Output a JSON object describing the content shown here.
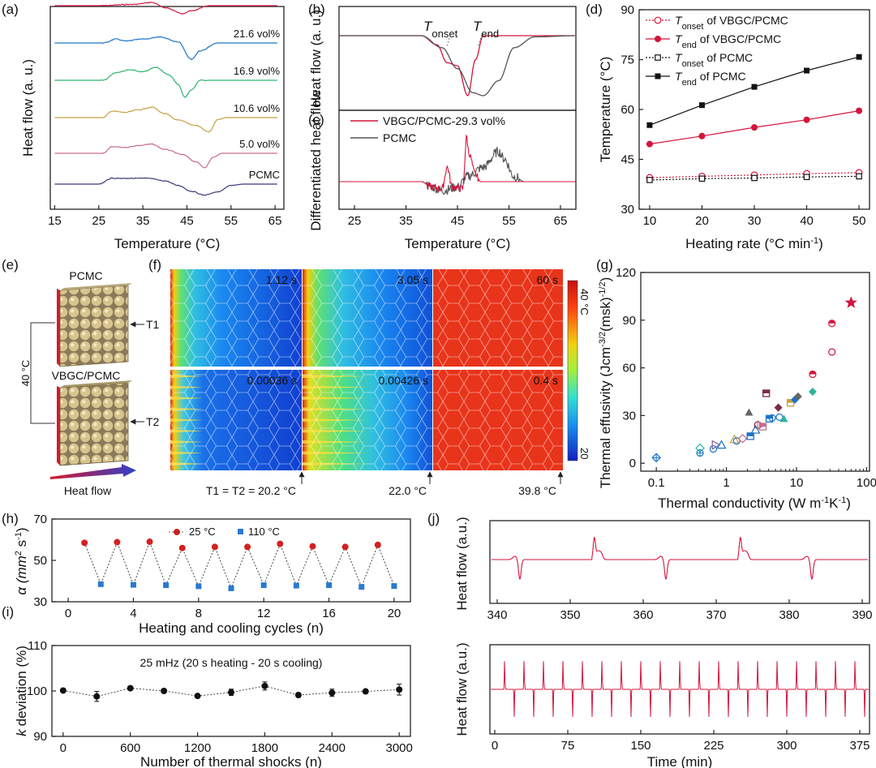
{
  "panels": {
    "a": "(a)",
    "b": "(b)",
    "c": "(c)",
    "d": "(d)",
    "e": "(e)",
    "f": "(f)",
    "g": "(g)",
    "h": "(h)",
    "i": "(i)",
    "j": "(j)"
  },
  "colors": {
    "red": "#d4143c",
    "blue": "#1a73c8",
    "green": "#2db36b",
    "gold": "#c8a040",
    "pink": "#c76c8a",
    "navy": "#3a3a7a",
    "gray": "#555555",
    "black": "#111111",
    "dot_red": "#d42020",
    "sq_blue": "#2a7ad0"
  },
  "chart_data": [
    {
      "id": "a",
      "type": "line",
      "ylabel": "Heat flow (a. u.)",
      "xlabel": "Temperature (°C)",
      "xlim": [
        14,
        67
      ],
      "xticks": [
        15,
        25,
        35,
        45,
        55,
        65
      ],
      "series": [
        {
          "name": "29.3 vol%",
          "label": "29.3 vol%",
          "color": "#d4143c",
          "shape": [
            [
              15,
              0
            ],
            [
              25,
              0
            ],
            [
              33,
              -0.2
            ],
            [
              37,
              -0.5
            ],
            [
              40,
              0.3
            ],
            [
              44,
              1.2
            ],
            [
              46,
              0.8
            ],
            [
              50,
              0
            ],
            [
              65,
              0
            ]
          ]
        },
        {
          "name": "21.6 vol%",
          "label": "21.6 vol%",
          "color": "#1a73c8",
          "shape": [
            [
              15,
              0
            ],
            [
              26,
              0
            ],
            [
              29,
              -0.6
            ],
            [
              31,
              -0.3
            ],
            [
              35,
              -0.6
            ],
            [
              39,
              -0.9
            ],
            [
              43,
              -0.2
            ],
            [
              46,
              2.5
            ],
            [
              48,
              1.2
            ],
            [
              52,
              0
            ],
            [
              65,
              0
            ]
          ]
        },
        {
          "name": "16.9 vol%",
          "label": "16.9 vol%",
          "color": "#2db36b",
          "shape": [
            [
              15,
              0
            ],
            [
              26,
              0
            ],
            [
              29,
              -1.2
            ],
            [
              32,
              -1.6
            ],
            [
              35,
              -1.3
            ],
            [
              38,
              -2.0
            ],
            [
              41,
              -0.8
            ],
            [
              43,
              0.6
            ],
            [
              44.5,
              2.6
            ],
            [
              46,
              1.5
            ],
            [
              48,
              0
            ],
            [
              65,
              0
            ]
          ]
        },
        {
          "name": "10.6 vol%",
          "label": "10.6 vol%",
          "color": "#c8a040",
          "shape": [
            [
              15,
              0
            ],
            [
              26,
              0
            ],
            [
              28,
              -1.0
            ],
            [
              31,
              -0.8
            ],
            [
              34,
              -1.2
            ],
            [
              37,
              -1.6
            ],
            [
              40,
              -0.6
            ],
            [
              43,
              0.4
            ],
            [
              47,
              1.2
            ],
            [
              50,
              2.2
            ],
            [
              52,
              0.3
            ],
            [
              54,
              0
            ],
            [
              65,
              0
            ]
          ]
        },
        {
          "name": "5.0 vol%",
          "label": "5.0 vol%",
          "color": "#c76c8a",
          "shape": [
            [
              15,
              0
            ],
            [
              26,
              0
            ],
            [
              28,
              -1.0
            ],
            [
              31,
              -0.9
            ],
            [
              34,
              -1.2
            ],
            [
              37,
              -1.4
            ],
            [
              40,
              -0.6
            ],
            [
              44,
              0.2
            ],
            [
              47,
              1.3
            ],
            [
              49,
              2.2
            ],
            [
              51,
              0.6
            ],
            [
              53,
              0
            ],
            [
              65,
              0
            ]
          ]
        },
        {
          "name": "PCMC",
          "label": "PCMC",
          "color": "#3a3a7a",
          "shape": [
            [
              15,
              0
            ],
            [
              25,
              0
            ],
            [
              28,
              -0.9
            ],
            [
              32,
              -0.9
            ],
            [
              36,
              -0.9
            ],
            [
              40,
              -0.5
            ],
            [
              43,
              0.2
            ],
            [
              46,
              1.1
            ],
            [
              49,
              1.7
            ],
            [
              52,
              1.2
            ],
            [
              55,
              0.2
            ],
            [
              58,
              0
            ],
            [
              65,
              0
            ]
          ]
        }
      ]
    },
    {
      "id": "b",
      "type": "line",
      "ylabel": "Heat flow (a. u.)",
      "annotations": [
        "T",
        "onset",
        "T",
        "end"
      ],
      "series": [
        {
          "name": "VBGC/PCMC-29.3 vol%",
          "color": "#d4143c",
          "shape": [
            [
              22,
              0
            ],
            [
              38,
              0
            ],
            [
              41,
              0.15
            ],
            [
              43,
              0.45
            ],
            [
              45,
              0.5
            ],
            [
              47,
              1.0
            ],
            [
              48.5,
              0.4
            ],
            [
              50,
              0
            ],
            [
              68,
              0
            ]
          ]
        },
        {
          "name": "PCMC",
          "color": "#555555",
          "shape": [
            [
              22,
              0
            ],
            [
              38,
              0
            ],
            [
              42,
              0.2
            ],
            [
              45,
              0.55
            ],
            [
              48,
              0.95
            ],
            [
              50,
              1.0
            ],
            [
              53,
              0.75
            ],
            [
              56,
              0.2
            ],
            [
              60,
              0.02
            ],
            [
              68,
              0
            ]
          ]
        }
      ]
    },
    {
      "id": "c",
      "type": "line",
      "ylabel": "Differentiated heat flow",
      "xlabel": "Temperature (°C)",
      "xlim": [
        22,
        68
      ],
      "xticks": [
        25,
        35,
        45,
        55,
        65
      ],
      "series": [
        {
          "name": "VBGC/PCMC-29.3 vol%",
          "label": "VBGC/PCMC-29.3 vol%",
          "color": "#d4143c",
          "shape": [
            [
              22,
              0
            ],
            [
              38,
              0
            ],
            [
              40,
              -0.3
            ],
            [
              42,
              -0.4
            ],
            [
              43,
              0.8
            ],
            [
              44,
              -0.3
            ],
            [
              46,
              -0.4
            ],
            [
              46.8,
              2.5
            ],
            [
              47.2,
              1.6
            ],
            [
              48.5,
              0.4
            ],
            [
              49.5,
              0
            ],
            [
              68,
              0
            ]
          ]
        },
        {
          "name": "PCMC",
          "label": "PCMC",
          "color": "#555555",
          "shape": [
            [
              22,
              0
            ],
            [
              38,
              0
            ],
            [
              40,
              -0.3
            ],
            [
              42,
              -0.5
            ],
            [
              45,
              -0.3
            ],
            [
              47,
              0.3
            ],
            [
              50,
              0.8
            ],
            [
              53,
              1.7
            ],
            [
              54,
              1.3
            ],
            [
              56,
              0.3
            ],
            [
              58,
              0
            ],
            [
              68,
              0
            ]
          ]
        }
      ]
    },
    {
      "id": "d",
      "type": "line",
      "xlabel": "Heating rate (°C min",
      "xlabel_sup": "-1",
      "xlabel_end": ")",
      "ylabel": "Temperature (°C)",
      "xlim": [
        8,
        52
      ],
      "ylim": [
        30,
        90
      ],
      "xticks": [
        10,
        20,
        30,
        40,
        50
      ],
      "yticks": [
        30,
        45,
        60,
        75,
        90
      ],
      "x": [
        10,
        20,
        30,
        40,
        50
      ],
      "series": [
        {
          "name": "Tonset of VBGC/PCMC",
          "t": "T",
          "sub": "onset",
          "rest": " of VBGC/PCMC",
          "color": "#d4143c",
          "marker": "open-circle",
          "dash": true,
          "values": [
            39.5,
            39.9,
            40.3,
            40.7,
            41.0
          ]
        },
        {
          "name": "Tend of VBGC/PCMC",
          "t": "T",
          "sub": "end",
          "rest": " of VBGC/PCMC",
          "color": "#d4143c",
          "marker": "circle",
          "dash": false,
          "values": [
            49.6,
            52.0,
            54.6,
            56.9,
            59.6
          ]
        },
        {
          "name": "Tonset of PCMC",
          "t": "T",
          "sub": "onset",
          "rest": " of PCMC",
          "color": "#111111",
          "marker": "open-square",
          "dash": true,
          "values": [
            38.8,
            39.2,
            39.4,
            39.7,
            39.9
          ]
        },
        {
          "name": "Tend of PCMC",
          "t": "T",
          "sub": "end",
          "rest": " of PCMC",
          "color": "#111111",
          "marker": "square",
          "dash": false,
          "values": [
            55.3,
            61.3,
            66.8,
            71.7,
            75.8
          ]
        }
      ]
    },
    {
      "id": "g",
      "type": "scatter",
      "xlabel": "Thermal conductivity (W m",
      "xlabel_sup1": "-1",
      "xlabel_mid": "K",
      "xlabel_sup2": "-1",
      "xlabel_end": ")",
      "ylabel": "Thermal effusivity (Jcm",
      "ylabel_sup1": "-3/2",
      "ylabel_mid": "(msk)",
      "ylabel_sup2": "-1/2",
      "ylabel_end": ")",
      "xscale": "log",
      "xlim": [
        0.06,
        110
      ],
      "ylim": [
        -5,
        120
      ],
      "xticks": [
        0.1,
        1,
        10,
        100
      ],
      "xtick_labels": [
        "0.1",
        "1",
        "10",
        "100"
      ],
      "yticks": [
        0,
        30,
        60,
        90,
        120
      ],
      "points": [
        {
          "x": 0.1,
          "y": 3.5,
          "m": "diamond-cross",
          "c": "#1a73c8"
        },
        {
          "x": 0.42,
          "y": 6.5,
          "m": "circle-cross",
          "c": "#1a73c8"
        },
        {
          "x": 0.42,
          "y": 9.5,
          "m": "diamond",
          "c": "#2db3a0"
        },
        {
          "x": 0.65,
          "y": 9,
          "m": "circle",
          "c": "#1a73c8"
        },
        {
          "x": 0.7,
          "y": 11.5,
          "m": "triangle-r",
          "c": "#7a5aa0"
        },
        {
          "x": 0.85,
          "y": 11.5,
          "m": "triangle",
          "c": "#1a73c8"
        },
        {
          "x": 1.3,
          "y": 15,
          "m": "triangle",
          "c": "#c8a040"
        },
        {
          "x": 1.4,
          "y": 14,
          "m": "circle",
          "c": "#1a73c8"
        },
        {
          "x": 1.7,
          "y": 15.5,
          "m": "diamond",
          "c": "#c76c8a"
        },
        {
          "x": 2.1,
          "y": 32,
          "m": "triangle-f",
          "c": "#666666"
        },
        {
          "x": 2.2,
          "y": 17,
          "m": "square",
          "c": "#1a73c8"
        },
        {
          "x": 2.6,
          "y": 21,
          "m": "triangle",
          "c": "#1a73c8"
        },
        {
          "x": 2.8,
          "y": 24,
          "m": "circle",
          "c": "#7a2a4a"
        },
        {
          "x": 3.1,
          "y": 24,
          "m": "triangle-r",
          "c": "#c76c8a"
        },
        {
          "x": 3.3,
          "y": 23,
          "m": "square",
          "c": "#c76c8a"
        },
        {
          "x": 3.7,
          "y": 44,
          "m": "square",
          "c": "#7a2a4a"
        },
        {
          "x": 4.1,
          "y": 28,
          "m": "square",
          "c": "#1a73c8"
        },
        {
          "x": 4.5,
          "y": 28.5,
          "m": "circle",
          "c": "#1a73c8"
        },
        {
          "x": 5.5,
          "y": 35,
          "m": "diamond-f",
          "c": "#7a2a4a"
        },
        {
          "x": 5.7,
          "y": 29,
          "m": "circle",
          "c": "#1a73c8"
        },
        {
          "x": 6.6,
          "y": 28,
          "m": "triangle-f",
          "c": "#2db3a0"
        },
        {
          "x": 8.2,
          "y": 38,
          "m": "square",
          "c": "#c8a040"
        },
        {
          "x": 9.5,
          "y": 40,
          "m": "diamond-f",
          "c": "#1a73c8"
        },
        {
          "x": 10.5,
          "y": 42,
          "m": "diamond-f",
          "c": "#666666"
        },
        {
          "x": 17,
          "y": 45,
          "m": "diamond-f",
          "c": "#2db3a0"
        },
        {
          "x": 17,
          "y": 56,
          "m": "circle-half",
          "c": "#d4143c"
        },
        {
          "x": 32,
          "y": 70,
          "m": "circle",
          "c": "#d4143c"
        },
        {
          "x": 32,
          "y": 88,
          "m": "circle-half",
          "c": "#d4143c"
        },
        {
          "x": 60,
          "y": 101,
          "m": "star",
          "c": "#d4143c"
        }
      ]
    },
    {
      "id": "h",
      "type": "scatter",
      "ylabel": "α (mm",
      "ylabel_sup": "2",
      "ylabel_mid": " s",
      "ylabel_sup2": "-1",
      "ylabel_end": ")",
      "xlabel": "Heating and cooling cycles (n)",
      "xlim": [
        -1,
        21
      ],
      "ylim": [
        30,
        70
      ],
      "xticks": [
        0,
        4,
        8,
        12,
        16,
        20
      ],
      "yticks": [
        30,
        50,
        70
      ],
      "legend": [
        "25 °C",
        "110 °C"
      ],
      "x": [
        1,
        2,
        3,
        4,
        5,
        6,
        7,
        8,
        9,
        10,
        11,
        12,
        13,
        14,
        15,
        16,
        17,
        18,
        19,
        20
      ],
      "values": [
        58.5,
        38.5,
        58.8,
        38.2,
        59,
        38,
        56,
        37.5,
        56.5,
        36.5,
        56.5,
        38,
        58,
        37.8,
        56.8,
        38,
        56.5,
        37.2,
        57.5,
        37.6
      ]
    },
    {
      "id": "i",
      "type": "scatter",
      "ylabel": "deviation (%)",
      "ylabel_k": "k",
      "xlabel": "Number of thermal shocks (n)",
      "annotation": "25 mHz (20 s heating - 20 s cooling)",
      "xlim": [
        -100,
        3100
      ],
      "ylim": [
        90,
        110
      ],
      "xticks": [
        0,
        600,
        1200,
        1800,
        2400,
        3000
      ],
      "yticks": [
        90,
        100,
        110
      ],
      "x": [
        0,
        300,
        600,
        900,
        1200,
        1500,
        1800,
        2100,
        2400,
        2700,
        3000
      ],
      "values": [
        100.1,
        98.8,
        100.6,
        100.0,
        98.9,
        99.7,
        101.1,
        99.1,
        99.6,
        99.9,
        100.3
      ],
      "errors": [
        0.3,
        1.1,
        0.3,
        0.3,
        0.2,
        0.7,
        0.9,
        0.5,
        0.8,
        0.4,
        1.2
      ]
    },
    {
      "id": "j_top",
      "type": "line",
      "ylabel": "Heat flow (a.u.)",
      "xlim": [
        339,
        391
      ],
      "xticks": [
        340,
        350,
        360,
        370,
        380,
        390
      ],
      "color": "#d4143c",
      "peaks": [
        {
          "x": 343,
          "dir": -1
        },
        {
          "x": 353.3,
          "dir": 1
        },
        {
          "x": 363,
          "dir": -1
        },
        {
          "x": 373.3,
          "dir": 1
        },
        {
          "x": 383,
          "dir": -1
        }
      ]
    },
    {
      "id": "j_bottom",
      "type": "line",
      "ylabel": "Heat flow (a.u.)",
      "xlabel": "Time (min)",
      "xlim": [
        -5,
        385
      ],
      "xticks": [
        0,
        75,
        150,
        225,
        300,
        375
      ],
      "color": "#d4143c",
      "period_min": 20,
      "cycles": 19
    }
  ],
  "panel_e": {
    "top_label": "PCMC",
    "bottom_label": "VBGC/PCMC",
    "t1": "T1",
    "t2": "T2",
    "temp": "40 °C",
    "flow": "Heat flow"
  },
  "panel_f": {
    "times_top": [
      "1.12 s",
      "3.05 s",
      "60 s"
    ],
    "times_bottom": [
      "0.00036 s",
      "0.00426 s",
      "0.4 s"
    ],
    "fronts_top": [
      0.05,
      0.15,
      1.0
    ],
    "fronts_bottom": [
      0.25,
      0.5,
      1.0
    ],
    "colorbar_max": "40 °C",
    "colorbar_min": "20",
    "readouts": [
      "T1 = T2 = 20.2 °C",
      "22.0 °C",
      "39.8 °C"
    ]
  }
}
